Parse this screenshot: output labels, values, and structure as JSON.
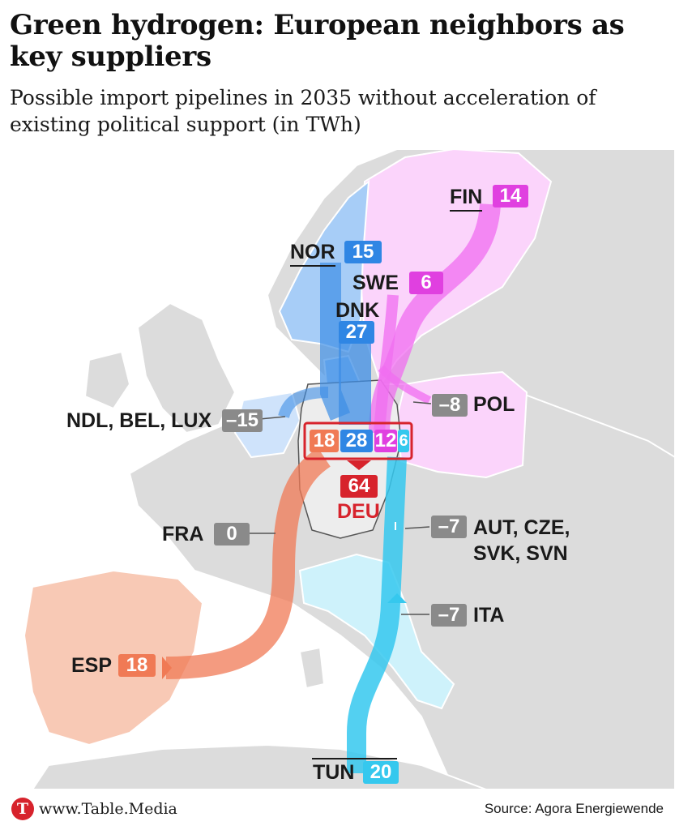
{
  "header": {
    "title": "Green hydrogen: European neighbors as key suppliers",
    "subtitle": "Possible import pipelines in 2035 without acceleration of existing political support (in TWh)"
  },
  "colors": {
    "land": "#dcdcdc",
    "sea": "#ffffff",
    "norway_flow": "#3d8ee6",
    "sweden_finland_flow": "#f06df0",
    "spain_flow": "#f07a55",
    "tunisia_flow": "#35c8ee",
    "negative_badge": "#8a8a8a",
    "germany_total": "#d7232c"
  },
  "map": {
    "flows": [
      {
        "id": "norway",
        "label": "NOR",
        "value": "15"
      },
      {
        "id": "denmark",
        "label": "DNK",
        "value": "27"
      },
      {
        "id": "finland",
        "label": "FIN",
        "value": "14"
      },
      {
        "id": "sweden",
        "label": "SWE",
        "value": "6"
      },
      {
        "id": "spain",
        "label": "ESP",
        "value": "18"
      },
      {
        "id": "tunisia",
        "label": "TUN",
        "value": "20"
      }
    ],
    "exports": [
      {
        "id": "poland",
        "label": "POL",
        "value": "–8"
      },
      {
        "id": "benelux",
        "label": "NDL, BEL, LUX",
        "value": "–15"
      },
      {
        "id": "france",
        "label": "FRA",
        "value": "0"
      },
      {
        "id": "central",
        "label": "AUT, CZE,",
        "label2": "SVK, SVN",
        "value": "–7"
      },
      {
        "id": "italy",
        "label": "ITA",
        "value": "–7"
      }
    ],
    "germany": {
      "label": "DEU",
      "total": "64",
      "inflows": [
        "18",
        "28",
        "12",
        "6"
      ]
    }
  },
  "footer": {
    "logo_letter": "T",
    "url": "www.Table.Media",
    "source": "Source: Agora Energiewende"
  }
}
